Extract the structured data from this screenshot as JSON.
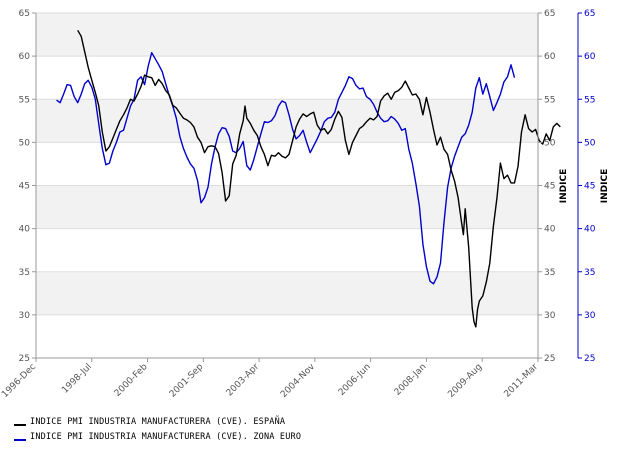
{
  "chart_data": {
    "type": "line",
    "title": "",
    "ylabel_left": "INDICE",
    "ylabel_right": "INDICE",
    "ylim": [
      25,
      65
    ],
    "yticks": [
      25,
      30,
      35,
      40,
      45,
      50,
      55,
      60,
      65
    ],
    "xlim": [
      1996.917,
      2011.167
    ],
    "x_tick_labels": [
      "1996-Dec",
      "1998-Jul",
      "2000-Feb",
      "2001-Sep",
      "2003-Apr",
      "2004-Nov",
      "2006-Jun",
      "2008-Jan",
      "2009-Aug",
      "2011-Mar"
    ],
    "x_tick_values": [
      1996.917,
      1998.5,
      2000.083,
      2001.667,
      2003.25,
      2004.833,
      2006.417,
      2008.0,
      2009.583,
      2011.167
    ],
    "grid": true,
    "legend_position": "bottom-left",
    "colors": {
      "espana": "#000000",
      "zona_euro": "#0000cc",
      "left_axis": "#555555",
      "right_axis": "#0000cc",
      "band": "#f2f2f2"
    },
    "series": [
      {
        "name": "INDICE PMI INDUSTRIA MANUFACTURERA (CVE). ESPAÑA",
        "axis": "left",
        "points": [
          [
            1998.1,
            63.0
          ],
          [
            1998.2,
            62.3
          ],
          [
            1998.3,
            60.5
          ],
          [
            1998.4,
            58.7
          ],
          [
            1998.5,
            57.2
          ],
          [
            1998.6,
            55.8
          ],
          [
            1998.7,
            54.2
          ],
          [
            1998.8,
            51.2
          ],
          [
            1998.9,
            49.0
          ],
          [
            1999.0,
            49.5
          ],
          [
            1999.1,
            50.5
          ],
          [
            1999.2,
            51.5
          ],
          [
            1999.3,
            52.5
          ],
          [
            1999.4,
            53.2
          ],
          [
            1999.5,
            54.0
          ],
          [
            1999.6,
            55.0
          ],
          [
            1999.7,
            54.8
          ],
          [
            1999.8,
            55.6
          ],
          [
            1999.9,
            56.5
          ],
          [
            2000.0,
            57.8
          ],
          [
            2000.1,
            57.6
          ],
          [
            2000.2,
            57.5
          ],
          [
            2000.3,
            56.6
          ],
          [
            2000.4,
            57.3
          ],
          [
            2000.5,
            56.8
          ],
          [
            2000.6,
            56.0
          ],
          [
            2000.7,
            55.5
          ],
          [
            2000.8,
            54.3
          ],
          [
            2000.9,
            54.0
          ],
          [
            2001.0,
            53.4
          ],
          [
            2001.1,
            52.8
          ],
          [
            2001.2,
            52.6
          ],
          [
            2001.3,
            52.3
          ],
          [
            2001.4,
            51.8
          ],
          [
            2001.5,
            50.6
          ],
          [
            2001.6,
            50.0
          ],
          [
            2001.7,
            48.8
          ],
          [
            2001.8,
            49.5
          ],
          [
            2001.9,
            49.6
          ],
          [
            2002.0,
            49.5
          ],
          [
            2002.1,
            48.7
          ],
          [
            2002.2,
            46.5
          ],
          [
            2002.3,
            43.2
          ],
          [
            2002.4,
            43.8
          ],
          [
            2002.5,
            47.5
          ],
          [
            2002.6,
            48.5
          ],
          [
            2002.7,
            51.0
          ],
          [
            2002.8,
            52.5
          ],
          [
            2002.85,
            54.2
          ],
          [
            2002.9,
            52.8
          ],
          [
            2003.0,
            52.2
          ],
          [
            2003.1,
            51.4
          ],
          [
            2003.2,
            50.8
          ],
          [
            2003.3,
            49.5
          ],
          [
            2003.4,
            48.6
          ],
          [
            2003.5,
            47.3
          ],
          [
            2003.6,
            48.5
          ],
          [
            2003.7,
            48.4
          ],
          [
            2003.8,
            48.8
          ],
          [
            2003.9,
            48.4
          ],
          [
            2004.0,
            48.2
          ],
          [
            2004.1,
            48.6
          ],
          [
            2004.2,
            50.2
          ],
          [
            2004.3,
            51.8
          ],
          [
            2004.4,
            52.7
          ],
          [
            2004.5,
            53.3
          ],
          [
            2004.6,
            53.0
          ],
          [
            2004.7,
            53.3
          ],
          [
            2004.8,
            53.5
          ],
          [
            2004.9,
            52.0
          ],
          [
            2005.0,
            51.4
          ],
          [
            2005.1,
            51.6
          ],
          [
            2005.2,
            51.0
          ],
          [
            2005.3,
            51.5
          ],
          [
            2005.4,
            52.7
          ],
          [
            2005.5,
            53.6
          ],
          [
            2005.6,
            52.9
          ],
          [
            2005.7,
            50.2
          ],
          [
            2005.8,
            48.6
          ],
          [
            2005.9,
            50.0
          ],
          [
            2006.0,
            50.8
          ],
          [
            2006.1,
            51.6
          ],
          [
            2006.2,
            51.9
          ],
          [
            2006.3,
            52.4
          ],
          [
            2006.4,
            52.8
          ],
          [
            2006.5,
            52.6
          ],
          [
            2006.6,
            53.0
          ],
          [
            2006.7,
            54.8
          ],
          [
            2006.8,
            55.4
          ],
          [
            2006.9,
            55.7
          ],
          [
            2007.0,
            55.0
          ],
          [
            2007.1,
            55.8
          ],
          [
            2007.2,
            56.0
          ],
          [
            2007.3,
            56.4
          ],
          [
            2007.4,
            57.1
          ],
          [
            2007.5,
            56.3
          ],
          [
            2007.6,
            55.5
          ],
          [
            2007.7,
            55.6
          ],
          [
            2007.8,
            55.0
          ],
          [
            2007.9,
            53.2
          ],
          [
            2008.0,
            55.2
          ],
          [
            2008.1,
            53.5
          ],
          [
            2008.2,
            51.5
          ],
          [
            2008.3,
            49.7
          ],
          [
            2008.4,
            50.6
          ],
          [
            2008.5,
            49.2
          ],
          [
            2008.6,
            48.6
          ],
          [
            2008.7,
            46.8
          ],
          [
            2008.8,
            45.5
          ],
          [
            2008.9,
            43.6
          ],
          [
            2009.0,
            40.6
          ],
          [
            2009.05,
            39.3
          ],
          [
            2009.1,
            42.3
          ],
          [
            2009.2,
            37.8
          ],
          [
            2009.3,
            30.8
          ],
          [
            2009.35,
            29.2
          ],
          [
            2009.4,
            28.6
          ],
          [
            2009.45,
            30.6
          ],
          [
            2009.5,
            31.6
          ],
          [
            2009.6,
            32.2
          ],
          [
            2009.7,
            33.8
          ],
          [
            2009.8,
            36.0
          ],
          [
            2009.9,
            40.3
          ],
          [
            2010.0,
            43.5
          ],
          [
            2010.1,
            47.6
          ],
          [
            2010.2,
            45.8
          ],
          [
            2010.3,
            46.2
          ],
          [
            2010.4,
            45.3
          ],
          [
            2010.5,
            45.3
          ],
          [
            2010.6,
            47.2
          ],
          [
            2010.7,
            51.2
          ],
          [
            2010.8,
            53.2
          ],
          [
            2010.9,
            51.6
          ],
          [
            2011.0,
            51.2
          ],
          [
            2011.1,
            51.5
          ],
          [
            2011.2,
            50.2
          ],
          [
            2011.3,
            49.8
          ],
          [
            2011.4,
            51.0
          ],
          [
            2011.5,
            50.2
          ],
          [
            2011.6,
            51.8
          ],
          [
            2011.7,
            52.2
          ],
          [
            2011.8,
            51.8
          ]
        ]
      },
      {
        "name": "INDICE PMI INDUSTRIA MANUFACTURERA (CVE). ZONA EURO",
        "axis": "right",
        "points": [
          [
            1997.5,
            54.9
          ],
          [
            1997.6,
            54.6
          ],
          [
            1997.7,
            55.6
          ],
          [
            1997.8,
            56.7
          ],
          [
            1997.9,
            56.6
          ],
          [
            1998.0,
            55.3
          ],
          [
            1998.1,
            54.6
          ],
          [
            1998.2,
            55.6
          ],
          [
            1998.3,
            56.8
          ],
          [
            1998.4,
            57.2
          ],
          [
            1998.5,
            56.4
          ],
          [
            1998.6,
            55.0
          ],
          [
            1998.7,
            52.1
          ],
          [
            1998.8,
            49.3
          ],
          [
            1998.9,
            47.4
          ],
          [
            1999.0,
            47.6
          ],
          [
            1999.1,
            49.0
          ],
          [
            1999.2,
            50.0
          ],
          [
            1999.3,
            51.2
          ],
          [
            1999.4,
            51.4
          ],
          [
            1999.5,
            52.8
          ],
          [
            1999.6,
            54.2
          ],
          [
            1999.7,
            55.0
          ],
          [
            1999.8,
            57.2
          ],
          [
            1999.9,
            57.6
          ],
          [
            2000.0,
            56.7
          ],
          [
            2000.1,
            58.8
          ],
          [
            2000.2,
            60.4
          ],
          [
            2000.3,
            59.7
          ],
          [
            2000.4,
            59.0
          ],
          [
            2000.5,
            58.2
          ],
          [
            2000.6,
            56.8
          ],
          [
            2000.7,
            55.4
          ],
          [
            2000.8,
            54.2
          ],
          [
            2000.9,
            52.8
          ],
          [
            2001.0,
            50.7
          ],
          [
            2001.1,
            49.3
          ],
          [
            2001.2,
            48.3
          ],
          [
            2001.3,
            47.5
          ],
          [
            2001.4,
            47.0
          ],
          [
            2001.5,
            45.6
          ],
          [
            2001.6,
            43.0
          ],
          [
            2001.7,
            43.6
          ],
          [
            2001.8,
            44.8
          ],
          [
            2001.9,
            47.5
          ],
          [
            2002.0,
            49.5
          ],
          [
            2002.1,
            51.0
          ],
          [
            2002.2,
            51.7
          ],
          [
            2002.3,
            51.6
          ],
          [
            2002.4,
            50.7
          ],
          [
            2002.5,
            49.0
          ],
          [
            2002.6,
            48.8
          ],
          [
            2002.7,
            49.3
          ],
          [
            2002.8,
            50.1
          ],
          [
            2002.9,
            47.3
          ],
          [
            2003.0,
            46.8
          ],
          [
            2003.1,
            48.0
          ],
          [
            2003.2,
            49.5
          ],
          [
            2003.3,
            51.0
          ],
          [
            2003.4,
            52.4
          ],
          [
            2003.5,
            52.3
          ],
          [
            2003.6,
            52.5
          ],
          [
            2003.7,
            53.1
          ],
          [
            2003.8,
            54.2
          ],
          [
            2003.9,
            54.8
          ],
          [
            2004.0,
            54.6
          ],
          [
            2004.1,
            53.2
          ],
          [
            2004.2,
            51.5
          ],
          [
            2004.3,
            50.4
          ],
          [
            2004.4,
            50.8
          ],
          [
            2004.5,
            51.4
          ],
          [
            2004.6,
            50.0
          ],
          [
            2004.7,
            48.8
          ],
          [
            2004.8,
            49.6
          ],
          [
            2004.9,
            50.4
          ],
          [
            2005.0,
            51.3
          ],
          [
            2005.1,
            52.4
          ],
          [
            2005.2,
            52.8
          ],
          [
            2005.3,
            52.9
          ],
          [
            2005.4,
            53.5
          ],
          [
            2005.5,
            55.0
          ],
          [
            2005.6,
            55.8
          ],
          [
            2005.7,
            56.6
          ],
          [
            2005.8,
            57.6
          ],
          [
            2005.9,
            57.4
          ],
          [
            2006.0,
            56.6
          ],
          [
            2006.1,
            56.2
          ],
          [
            2006.2,
            56.3
          ],
          [
            2006.3,
            55.3
          ],
          [
            2006.4,
            55.0
          ],
          [
            2006.5,
            54.4
          ],
          [
            2006.6,
            53.5
          ],
          [
            2006.7,
            52.8
          ],
          [
            2006.8,
            52.4
          ],
          [
            2006.9,
            52.5
          ],
          [
            2007.0,
            53.0
          ],
          [
            2007.1,
            52.7
          ],
          [
            2007.2,
            52.2
          ],
          [
            2007.3,
            51.4
          ],
          [
            2007.4,
            51.6
          ],
          [
            2007.5,
            49.2
          ],
          [
            2007.6,
            47.6
          ],
          [
            2007.7,
            45.2
          ],
          [
            2007.8,
            42.6
          ],
          [
            2007.9,
            38.2
          ],
          [
            2008.0,
            35.6
          ],
          [
            2008.1,
            33.9
          ],
          [
            2008.2,
            33.6
          ],
          [
            2008.3,
            34.4
          ],
          [
            2008.4,
            36.0
          ],
          [
            2008.5,
            40.7
          ],
          [
            2008.6,
            44.8
          ],
          [
            2008.7,
            47.0
          ],
          [
            2008.8,
            48.4
          ],
          [
            2008.9,
            49.5
          ],
          [
            2009.0,
            50.6
          ],
          [
            2009.1,
            51.0
          ],
          [
            2009.2,
            52.0
          ],
          [
            2009.3,
            53.5
          ],
          [
            2009.4,
            56.3
          ],
          [
            2009.5,
            57.5
          ],
          [
            2009.6,
            55.6
          ],
          [
            2009.7,
            56.8
          ],
          [
            2009.8,
            55.3
          ],
          [
            2009.9,
            53.7
          ],
          [
            2010.0,
            54.6
          ],
          [
            2010.1,
            55.6
          ],
          [
            2010.2,
            57.0
          ],
          [
            2010.3,
            57.6
          ],
          [
            2010.4,
            59.0
          ],
          [
            2010.5,
            57.5
          ]
        ]
      }
    ]
  }
}
